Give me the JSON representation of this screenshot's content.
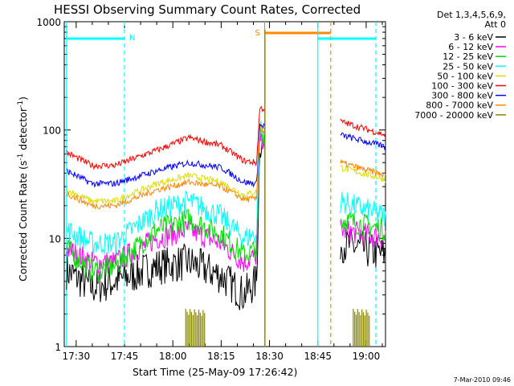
{
  "chart_data": {
    "type": "line",
    "title": "HESSI Observing Summary Count Rates, Corrected",
    "xlabel": "Start Time (25-May-09 17:26:42)",
    "ylabel": "Corrected Count Rate (s",
    "ylabel_sup1": "-1",
    "ylabel_mid": " detector",
    "ylabel_sup2": "-1",
    "ylabel_end": ")",
    "y_scale": "log",
    "ylim": [
      1,
      1000
    ],
    "xlim_minutes": [
      -3.7,
      96
    ],
    "x_ticks": [
      {
        "label": "17:30",
        "t": 0
      },
      {
        "label": "17:45",
        "t": 15
      },
      {
        "label": "18:00",
        "t": 30
      },
      {
        "label": "18:15",
        "t": 45
      },
      {
        "label": "18:30",
        "t": 60
      },
      {
        "label": "18:45",
        "t": 75
      },
      {
        "label": "19:00",
        "t": 90
      }
    ],
    "y_ticks": [
      {
        "label": "1",
        "v": 1
      },
      {
        "label": "10",
        "v": 10
      },
      {
        "label": "100",
        "v": 100
      },
      {
        "label": "1000",
        "v": 1000
      }
    ],
    "legend_header": [
      "Det 1,3,4,5,6,9,",
      "Att 0"
    ],
    "legend_position": "right",
    "series": [
      {
        "name": "3 - 6 keV",
        "color": "#000000",
        "values": [
          5,
          3.5,
          4,
          5.5,
          6,
          4.5,
          3,
          4,
          80,
          9,
          7
        ]
      },
      {
        "name": "6 - 12 keV",
        "color": "#ff00ff",
        "values": [
          8,
          6,
          6,
          10,
          12,
          9,
          6,
          7,
          90,
          12,
          10
        ]
      },
      {
        "name": "12 - 25 keV",
        "color": "#00dd00",
        "values": [
          8,
          5,
          5.5,
          12,
          15,
          11,
          7,
          8,
          95,
          15,
          12
        ]
      },
      {
        "name": "25 - 50 keV",
        "color": "#00ffff",
        "values": [
          12,
          9,
          9,
          18,
          22,
          16,
          10,
          11,
          100,
          22,
          16
        ]
      },
      {
        "name": "50 - 100 keV",
        "color": "#dddd00",
        "values": [
          28,
          22,
          22,
          32,
          38,
          33,
          25,
          27,
          105,
          45,
          35
        ]
      },
      {
        "name": "100 - 300 keV",
        "color": "#ff0000",
        "values": [
          62,
          47,
          47,
          65,
          85,
          72,
          52,
          50,
          160,
          120,
          90
        ]
      },
      {
        "name": "300 - 800 keV",
        "color": "#0000ff",
        "values": [
          42,
          32,
          32,
          42,
          50,
          45,
          33,
          32,
          110,
          90,
          70
        ]
      },
      {
        "name": "800 - 7000 keV",
        "color": "#ff8800",
        "values": [
          26,
          20,
          20,
          28,
          33,
          30,
          23,
          23,
          100,
          50,
          38
        ]
      },
      {
        "name": "7000 - 20000 keV",
        "color": "#888800",
        "values": []
      }
    ],
    "series_times_minutes": [
      -3,
      5,
      12,
      25,
      35,
      45,
      52,
      56,
      57,
      82,
      96
    ],
    "annotations": [
      {
        "label": "N",
        "color": "#00ffff"
      },
      {
        "label": "S",
        "color": "#ff8800"
      }
    ],
    "night_interval_minutes": [
      -3,
      15
    ],
    "saa_interval_minutes": [
      58.5,
      79
    ],
    "night2_interval_minutes": [
      75,
      93
    ],
    "footer": "7-Mar-2010 09:46"
  }
}
